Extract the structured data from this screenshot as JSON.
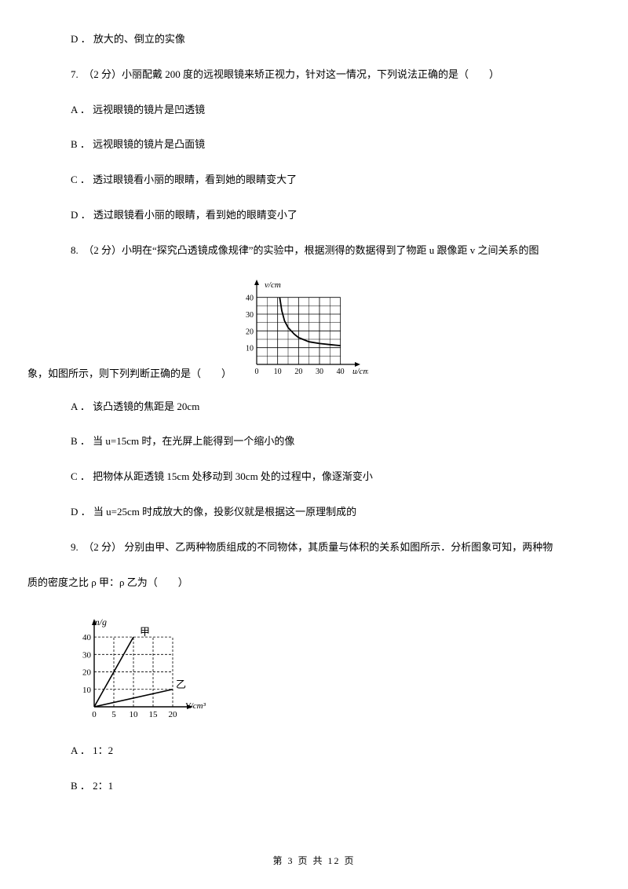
{
  "q6": {
    "optD": "D ． 放大的、倒立的实像"
  },
  "q7": {
    "stem": "7.　（2 分）小丽配戴 200 度的远视眼镜来矫正视力，针对这一情况，下列说法正确的是（　　）",
    "optA": "A ． 远视眼镜的镜片是凹透镜",
    "optB": "B ． 远视眼镜的镜片是凸面镜",
    "optC": "C ． 透过眼镜看小丽的眼睛，看到她的眼睛变大了",
    "optD": "D ． 透过眼镜看小丽的眼睛，看到她的眼睛变小了"
  },
  "q8": {
    "stem_a": "8.　（2 分）小明在“探究凸透镜成像规律”的实验中，根据测得的数据得到了物距 u 跟像距 v 之间关系的图",
    "stem_b": "象，如图所示，则下列判断正确的是（　　）",
    "optA": "A ． 该凸透镜的焦距是 20cm",
    "optB": "B ． 当 u=15cm 时，在光屏上能得到一个缩小的像",
    "optC": "C ． 把物体从距透镜 15cm 处移动到 30cm 处的过程中，像逐渐变小",
    "optD": "D ． 当 u=25cm 时成放大的像，投影仪就是根据这一原理制成的",
    "chart": {
      "type": "line",
      "xlabel": "u/cm",
      "ylabel": "v/cm",
      "xlim": [
        0,
        45
      ],
      "ylim": [
        0,
        45
      ],
      "xticks": [
        0,
        10,
        20,
        30,
        40
      ],
      "yticks": [
        10,
        20,
        30,
        40
      ],
      "grid_color": "#000000",
      "line_color": "#000000",
      "background": "#ffffff",
      "curve_points": [
        [
          11,
          40
        ],
        [
          12,
          32
        ],
        [
          13.3,
          26
        ],
        [
          15,
          22
        ],
        [
          18,
          18
        ],
        [
          20,
          16
        ],
        [
          25,
          13.5
        ],
        [
          30,
          12.5
        ],
        [
          35,
          11.8
        ],
        [
          40,
          11.2
        ]
      ]
    }
  },
  "q9": {
    "stem_a": "9.　（2 分） 分别由甲、乙两种物质组成的不同物体，其质量与体积的关系如图所示．分析图象可知，两种物",
    "stem_b": "质的密度之比 ρ 甲：ρ 乙为（　　）",
    "optA": "A ． 1：2",
    "optB": "B ． 2：1",
    "chart": {
      "type": "line",
      "xlabel": "V/cm³",
      "ylabel": "m/g",
      "xlim": [
        0,
        22
      ],
      "ylim": [
        0,
        45
      ],
      "xticks": [
        0,
        5,
        10,
        15,
        20
      ],
      "yticks": [
        10,
        20,
        30,
        40
      ],
      "series": [
        {
          "name": "甲",
          "color": "#000000",
          "points": [
            [
              0,
              0
            ],
            [
              10,
              40
            ]
          ]
        },
        {
          "name": "乙",
          "color": "#000000",
          "points": [
            [
              0,
              0
            ],
            [
              20,
              10
            ]
          ]
        }
      ],
      "grid_style": "dashed",
      "grid_color": "#000000",
      "background": "#ffffff"
    }
  },
  "footer": "第  3  页  共  12  页"
}
